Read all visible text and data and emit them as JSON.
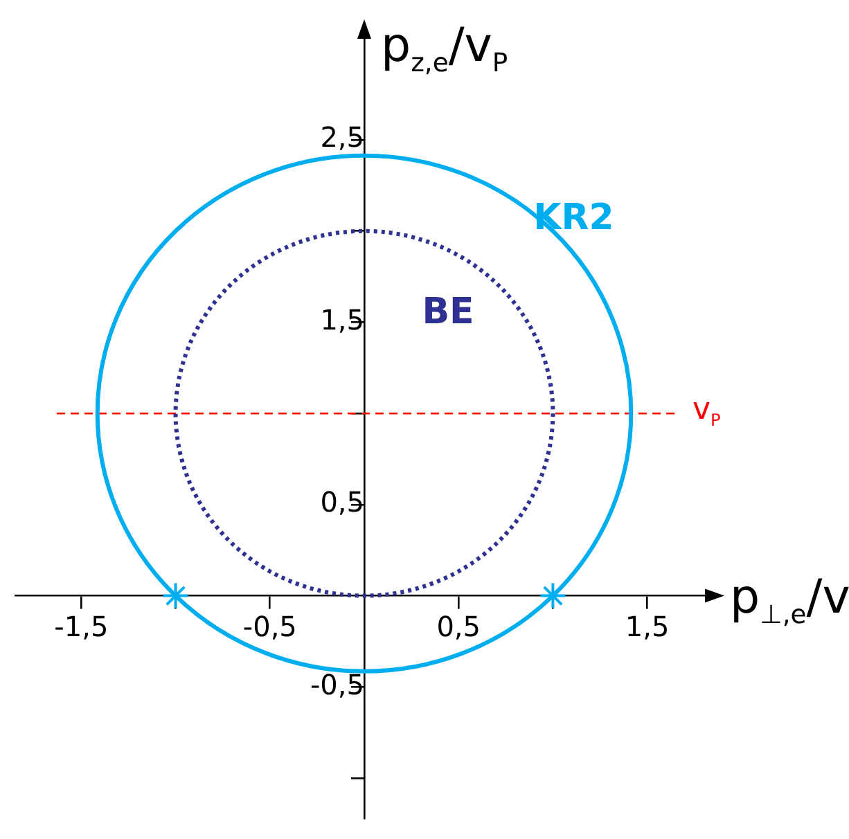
{
  "chart_data": {
    "type": "line",
    "xlabel": "p$_{⊥,e}$/v$_{P}$",
    "ylabel": "p$_{z,e}$/v$_{P}$",
    "xlim": [
      -1.85,
      1.85
    ],
    "ylim": [
      -1.22,
      3.1
    ],
    "xticks": [
      {
        "value": -1.5,
        "label": "-1,5"
      },
      {
        "value": -1,
        "label": null
      },
      {
        "value": -0.5,
        "label": "-0,5"
      },
      {
        "value": 0.5,
        "label": "0,5"
      },
      {
        "value": 1,
        "label": null
      },
      {
        "value": 1.5,
        "label": "1,5"
      }
    ],
    "yticks": [
      {
        "value": -1,
        "label": null
      },
      {
        "value": -0.5,
        "label": "-0,5"
      },
      {
        "value": 0.5,
        "label": "0,5"
      },
      {
        "value": 1,
        "label": null
      },
      {
        "value": 1.5,
        "label": "1,5"
      },
      {
        "value": 2,
        "label": null
      },
      {
        "value": 2.5,
        "label": "2,5"
      }
    ],
    "grid": false,
    "legend": false,
    "annotations": [
      "KR2",
      "BE"
    ],
    "series": [
      {
        "type": "scatter",
        "color": "#00aeef",
        "marker": "cross",
        "x": [
          -1,
          1
        ],
        "values": [
          0,
          0
        ]
      }
    ],
    "ref_lines": [
      {
        "axis": "y",
        "value": 1,
        "label": "v$_{P}$",
        "color": "#ff0000",
        "line_style": "dashed"
      }
    ]
  }
}
